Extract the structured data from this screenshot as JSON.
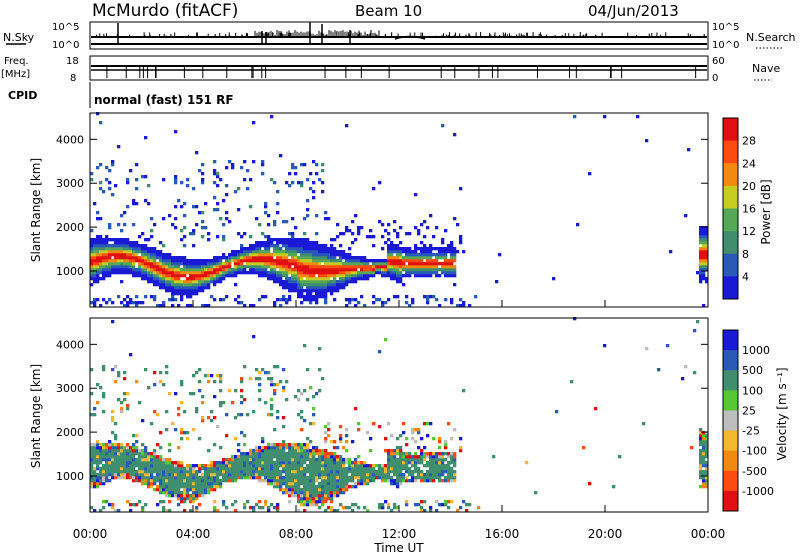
{
  "header": {
    "station": "McMurdo (fitACF)",
    "beam": "Beam 10",
    "date": "04/Jun/2013"
  },
  "nsky_panel": {
    "left_label": "N.Sky",
    "right_label": "N.Search",
    "left_ticks": [
      "10^5",
      "10^0"
    ],
    "right_ticks": [
      "10^5",
      "10^0"
    ]
  },
  "freq_panel": {
    "left_label_line1": "Freq.",
    "left_label_line2": "[MHz]",
    "right_label": "Nave",
    "left_ticks": [
      "18",
      "8"
    ],
    "right_ticks": [
      "60",
      "0"
    ]
  },
  "cpid": {
    "label": "CPID",
    "value": "normal (fast) 151 RF"
  },
  "colors": {
    "power_scale": [
      "#1a1ad6",
      "#2a5ab8",
      "#3f8f6f",
      "#55a855",
      "#c6cc22",
      "#f08a12",
      "#ff4a10",
      "#e01010"
    ],
    "velocity_scale": [
      "#e01010",
      "#ff4a10",
      "#f08a12",
      "#f3b830",
      "#bdbdbd",
      "#55c833",
      "#3f8f6f",
      "#2a5ab8",
      "#1a1ad6"
    ]
  },
  "chart_data": [
    {
      "type": "heatmap",
      "title": "Power",
      "xlabel": "Time UT",
      "ylabel": "Slant Range [km]",
      "x_ticks": [
        "00:00",
        "04:00",
        "08:00",
        "12:00",
        "16:00",
        "20:00",
        "00:00"
      ],
      "y_ticks": [
        "1000",
        "2000",
        "3000",
        "4000"
      ],
      "ylim": [
        180,
        4600
      ],
      "xlim_hours": [
        0,
        24
      ],
      "colorbar": {
        "label": "Power [dB]",
        "ticks": [
          "4",
          "8",
          "12",
          "16",
          "20",
          "24",
          "28"
        ],
        "range": [
          0,
          32
        ]
      }
    },
    {
      "type": "heatmap",
      "title": "Velocity",
      "xlabel": "Time UT",
      "ylabel": "Slant Range [km]",
      "x_ticks": [
        "00:00",
        "04:00",
        "08:00",
        "12:00",
        "16:00",
        "20:00",
        "00:00"
      ],
      "y_ticks": [
        "1000",
        "2000",
        "3000",
        "4000"
      ],
      "ylim": [
        180,
        4600
      ],
      "xlim_hours": [
        0,
        24
      ],
      "colorbar": {
        "label": "Velocity [m s⁻¹]",
        "ticks": [
          "1000",
          "500",
          "100",
          "25",
          "-25",
          "-100",
          "-500",
          "-1000"
        ]
      }
    }
  ]
}
